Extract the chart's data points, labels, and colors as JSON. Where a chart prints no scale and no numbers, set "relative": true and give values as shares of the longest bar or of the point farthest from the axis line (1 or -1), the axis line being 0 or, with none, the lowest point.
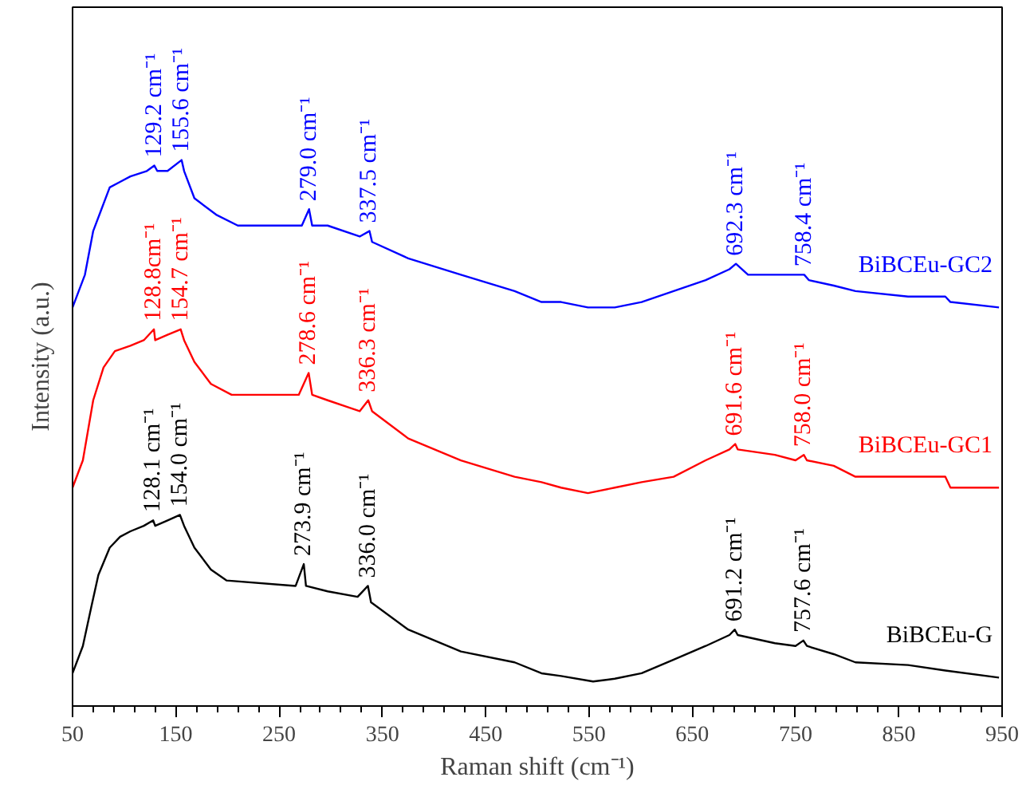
{
  "chart_data": {
    "type": "line",
    "relative": true,
    "xlabel": "Raman shift (cm⁻¹)",
    "ylabel": "Intensity (a.u.)",
    "xlim": [
      50,
      950
    ],
    "xticks": [
      50,
      150,
      250,
      350,
      450,
      550,
      650,
      750,
      850,
      950
    ],
    "grid": false,
    "legend": false,
    "tick_labels": "x",
    "series": [
      {
        "name": "BiBCEu-GC2",
        "color": "#0000ff",
        "x": [
          50,
          62,
          70,
          78,
          86,
          96,
          106,
          122,
          129.2,
          132,
          142,
          155.6,
          158,
          168,
          189,
          210,
          272,
          279,
          282,
          297,
          328,
          337.5,
          340,
          375,
          426,
          478,
          504,
          523,
          549,
          575,
          601,
          632,
          663,
          686,
          692.3,
          704,
          730,
          750,
          758.4,
          763,
          787,
          808,
          859,
          895,
          900,
          947
        ],
        "values": [
          0.73,
          0.79,
          0.87,
          0.91,
          0.95,
          0.96,
          0.97,
          0.98,
          0.99,
          0.98,
          0.98,
          1.0,
          0.98,
          0.93,
          0.9,
          0.88,
          0.88,
          0.91,
          0.88,
          0.88,
          0.86,
          0.87,
          0.85,
          0.82,
          0.79,
          0.76,
          0.74,
          0.74,
          0.73,
          0.73,
          0.74,
          0.76,
          0.78,
          0.8,
          0.81,
          0.79,
          0.79,
          0.79,
          0.79,
          0.78,
          0.77,
          0.76,
          0.75,
          0.75,
          0.74,
          0.73
        ]
      },
      {
        "name": "BiBCEu-GC1",
        "color": "#ff0000",
        "x": [
          50,
          60,
          70,
          80,
          91,
          106,
          119,
          128.8,
          130,
          142,
          154.7,
          158,
          168,
          184,
          204,
          269,
          278.6,
          282,
          297,
          328,
          336.3,
          340,
          375,
          426,
          478,
          504,
          523,
          549,
          575,
          601,
          632,
          663,
          686,
          691.6,
          694,
          730,
          750,
          758.0,
          761,
          787,
          808,
          859,
          895,
          900,
          947
        ],
        "values": [
          0.4,
          0.45,
          0.56,
          0.62,
          0.65,
          0.66,
          0.67,
          0.69,
          0.67,
          0.68,
          0.69,
          0.67,
          0.63,
          0.59,
          0.57,
          0.57,
          0.61,
          0.57,
          0.56,
          0.54,
          0.56,
          0.54,
          0.49,
          0.45,
          0.42,
          0.41,
          0.4,
          0.39,
          0.4,
          0.41,
          0.42,
          0.45,
          0.47,
          0.48,
          0.47,
          0.46,
          0.45,
          0.46,
          0.45,
          0.44,
          0.42,
          0.42,
          0.42,
          0.4,
          0.4
        ]
      },
      {
        "name": "BiBCEu-G",
        "color": "#000000",
        "x": [
          50,
          60,
          68,
          75,
          86,
          96,
          106,
          119,
          128.1,
          130,
          142,
          154.0,
          158,
          168,
          184,
          199,
          266,
          273.9,
          276,
          297,
          326,
          336.0,
          339,
          375,
          426,
          478,
          504,
          523,
          554,
          575,
          601,
          632,
          663,
          686,
          691.2,
          694,
          730,
          750,
          757.6,
          761,
          787,
          808,
          859,
          895,
          947
        ],
        "values": [
          0.06,
          0.11,
          0.18,
          0.24,
          0.29,
          0.31,
          0.32,
          0.33,
          0.34,
          0.33,
          0.34,
          0.35,
          0.33,
          0.29,
          0.25,
          0.23,
          0.22,
          0.26,
          0.22,
          0.21,
          0.2,
          0.22,
          0.19,
          0.14,
          0.1,
          0.08,
          0.06,
          0.055,
          0.045,
          0.05,
          0.06,
          0.085,
          0.11,
          0.13,
          0.14,
          0.13,
          0.115,
          0.11,
          0.12,
          0.11,
          0.095,
          0.08,
          0.075,
          0.065,
          0.052
        ]
      }
    ],
    "annotations": [
      {
        "text": "129.2 cm⁻¹",
        "x": 129.2,
        "y": 0.99
      },
      {
        "text": "155.6 cm⁻¹",
        "x": 155.6,
        "y": 1.0
      },
      {
        "text": "279.0 cm⁻¹",
        "x": 279,
        "y": 0.91
      },
      {
        "text": "337.5 cm⁻¹",
        "x": 337.5,
        "y": 0.87
      },
      {
        "text": "692.3 cm⁻¹",
        "x": 692.3,
        "y": 0.81
      },
      {
        "text": "758.4 cm⁻¹",
        "x": 758.4,
        "y": 0.79
      },
      {
        "text": "128.8cm⁻¹",
        "x": 128.8,
        "y": 0.69
      },
      {
        "text": "154.7 cm⁻¹",
        "x": 154.7,
        "y": 0.69
      },
      {
        "text": "278.6 cm⁻¹",
        "x": 278.6,
        "y": 0.61
      },
      {
        "text": "336.3 cm⁻¹",
        "x": 336.3,
        "y": 0.56
      },
      {
        "text": "691.6 cm⁻¹",
        "x": 691.6,
        "y": 0.48
      },
      {
        "text": "758.0 cm⁻¹",
        "x": 758.0,
        "y": 0.46
      },
      {
        "text": "128.1 cm⁻¹",
        "x": 128.1,
        "y": 0.34
      },
      {
        "text": "154.0 cm⁻¹",
        "x": 154.0,
        "y": 0.35
      },
      {
        "text": "273.9 cm⁻¹",
        "x": 273.9,
        "y": 0.26
      },
      {
        "text": "336.0 cm⁻¹",
        "x": 336.0,
        "y": 0.22
      },
      {
        "text": "691.2 cm⁻¹",
        "x": 691.2,
        "y": 0.14
      },
      {
        "text": "757.6 cm⁻¹",
        "x": 757.6,
        "y": 0.12
      }
    ]
  }
}
